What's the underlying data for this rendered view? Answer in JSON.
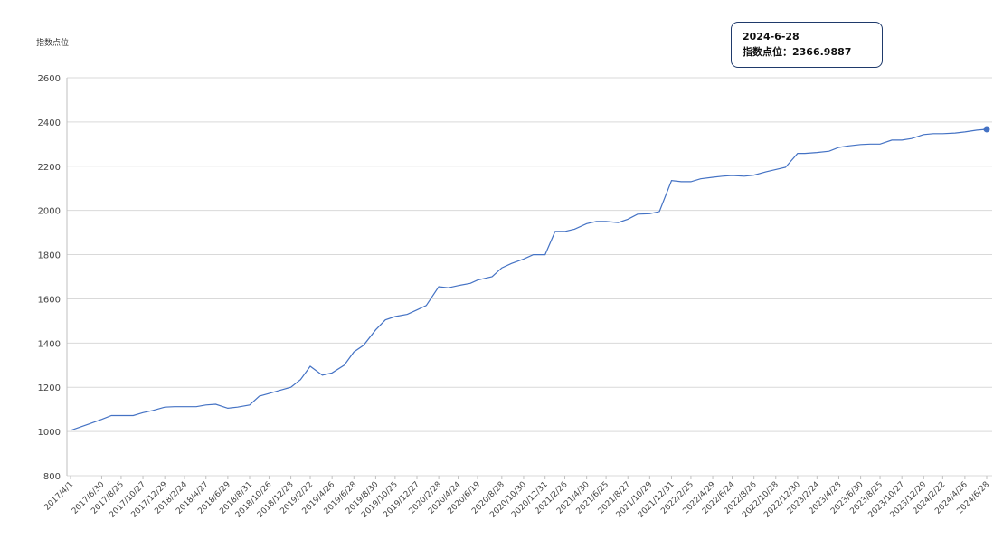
{
  "tooltip": {
    "date": "2024-6-28",
    "label": "指数点位：",
    "value": "2366.9887"
  },
  "colors": {
    "line": "#4472c4",
    "grid": "#d9d9d9",
    "axis": "#bfbfbf"
  },
  "chart_data": {
    "type": "line",
    "title": "",
    "xlabel": "",
    "ylabel": "指数点位",
    "ylim": [
      800,
      2600
    ],
    "yticks": [
      800,
      1000,
      1200,
      1400,
      1600,
      1800,
      2000,
      2200,
      2400,
      2600
    ],
    "grid": true,
    "xtick_labels": [
      "2017/4/1",
      "2017/6/30",
      "2017/8/25",
      "2017/10/27",
      "2017/12/29",
      "2018/2/24",
      "2018/4/27",
      "2018/6/29",
      "2018/8/31",
      "2018/10/26",
      "2018/12/28",
      "2019/2/22",
      "2019/4/26",
      "2019/6/28",
      "2019/8/30",
      "2019/10/25",
      "2019/12/27",
      "2020/2/28",
      "2020/4/24",
      "2020/6/19",
      "2020/8/28",
      "2020/10/30",
      "2020/12/31",
      "2021/2/26",
      "2021/4/30",
      "2021/6/25",
      "2021/8/27",
      "2021/10/29",
      "2021/12/31",
      "2022/2/25",
      "2022/4/29",
      "2022/6/24",
      "2022/8/26",
      "2022/10/28",
      "2022/12/30",
      "2023/2/24",
      "2023/4/28",
      "2023/6/30",
      "2023/8/25",
      "2023/10/27",
      "2023/12/29",
      "2024/2/22",
      "2024/4/26",
      "2024/6/28"
    ],
    "series": [
      {
        "name": "",
        "points": [
          [
            "2017/4/1",
            1005
          ],
          [
            "2017/5/26",
            1035
          ],
          [
            "2017/6/30",
            1055
          ],
          [
            "2017/7/28",
            1072
          ],
          [
            "2017/8/25",
            1072
          ],
          [
            "2017/9/29",
            1072
          ],
          [
            "2017/10/27",
            1085
          ],
          [
            "2017/11/24",
            1095
          ],
          [
            "2017/12/29",
            1110
          ],
          [
            "2018/1/26",
            1112
          ],
          [
            "2018/2/24",
            1112
          ],
          [
            "2018/3/30",
            1112
          ],
          [
            "2018/4/27",
            1120
          ],
          [
            "2018/5/25",
            1123
          ],
          [
            "2018/6/29",
            1105
          ],
          [
            "2018/7/27",
            1110
          ],
          [
            "2018/8/31",
            1120
          ],
          [
            "2018/9/28",
            1160
          ],
          [
            "2018/10/26",
            1172
          ],
          [
            "2018/11/30",
            1188
          ],
          [
            "2018/12/28",
            1200
          ],
          [
            "2019/1/25",
            1235
          ],
          [
            "2019/2/22",
            1295
          ],
          [
            "2019/3/29",
            1255
          ],
          [
            "2019/4/26",
            1265
          ],
          [
            "2019/5/31",
            1300
          ],
          [
            "2019/6/28",
            1360
          ],
          [
            "2019/7/26",
            1390
          ],
          [
            "2019/8/30",
            1460
          ],
          [
            "2019/9/27",
            1505
          ],
          [
            "2019/10/25",
            1520
          ],
          [
            "2019/11/29",
            1530
          ],
          [
            "2019/12/27",
            1550
          ],
          [
            "2020/1/23",
            1570
          ],
          [
            "2020/2/28",
            1655
          ],
          [
            "2020/3/27",
            1650
          ],
          [
            "2020/4/24",
            1660
          ],
          [
            "2020/5/29",
            1670
          ],
          [
            "2020/6/19",
            1685
          ],
          [
            "2020/7/31",
            1700
          ],
          [
            "2020/8/28",
            1740
          ],
          [
            "2020/9/25",
            1760
          ],
          [
            "2020/10/30",
            1780
          ],
          [
            "2020/11/27",
            1800
          ],
          [
            "2020/12/31",
            1800
          ],
          [
            "2021/1/29",
            1905
          ],
          [
            "2021/2/26",
            1905
          ],
          [
            "2021/3/26",
            1915
          ],
          [
            "2021/4/30",
            1940
          ],
          [
            "2021/5/28",
            1950
          ],
          [
            "2021/6/25",
            1950
          ],
          [
            "2021/7/30",
            1945
          ],
          [
            "2021/8/27",
            1960
          ],
          [
            "2021/9/24",
            1983
          ],
          [
            "2021/10/29",
            1985
          ],
          [
            "2021/11/26",
            1995
          ],
          [
            "2021/12/31",
            2135
          ],
          [
            "2022/1/28",
            2130
          ],
          [
            "2022/2/25",
            2130
          ],
          [
            "2022/3/25",
            2143
          ],
          [
            "2022/4/29",
            2150
          ],
          [
            "2022/5/27",
            2155
          ],
          [
            "2022/6/24",
            2158
          ],
          [
            "2022/7/29",
            2155
          ],
          [
            "2022/8/26",
            2160
          ],
          [
            "2022/9/30",
            2175
          ],
          [
            "2022/10/28",
            2185
          ],
          [
            "2022/11/25",
            2195
          ],
          [
            "2022/12/30",
            2258
          ],
          [
            "2023/1/20",
            2258
          ],
          [
            "2023/2/24",
            2262
          ],
          [
            "2023/3/31",
            2268
          ],
          [
            "2023/4/28",
            2285
          ],
          [
            "2023/5/26",
            2292
          ],
          [
            "2023/6/30",
            2298
          ],
          [
            "2023/7/28",
            2300
          ],
          [
            "2023/8/25",
            2300
          ],
          [
            "2023/9/28",
            2318
          ],
          [
            "2023/10/27",
            2318
          ],
          [
            "2023/11/24",
            2325
          ],
          [
            "2023/12/29",
            2343
          ],
          [
            "2024/1/26",
            2347
          ],
          [
            "2024/2/22",
            2347
          ],
          [
            "2024/3/29",
            2350
          ],
          [
            "2024/4/26",
            2355
          ],
          [
            "2024/5/31",
            2363
          ],
          [
            "2024/6/28",
            2366.9887
          ]
        ]
      }
    ]
  }
}
